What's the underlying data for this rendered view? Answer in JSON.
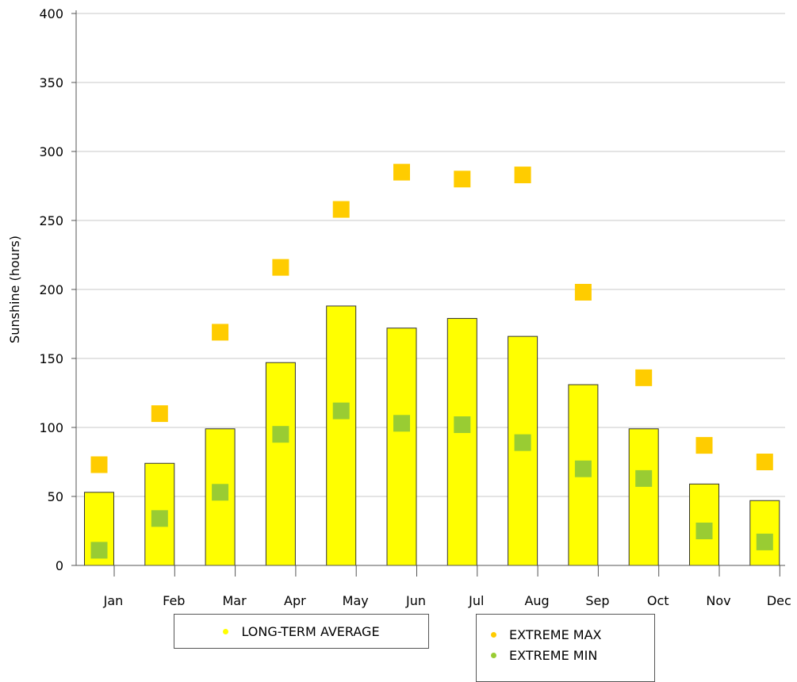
{
  "chart_data": {
    "type": "bar",
    "title": "",
    "xlabel": "",
    "ylabel": "Sunshine (hours)",
    "ylim": [
      0,
      400
    ],
    "yticks": [
      0,
      50,
      100,
      150,
      200,
      250,
      300,
      350,
      400
    ],
    "grid": true,
    "categories": [
      "Jan",
      "Feb",
      "Mar",
      "Apr",
      "May",
      "Jun",
      "Jul",
      "Aug",
      "Sep",
      "Oct",
      "Nov",
      "Dec"
    ],
    "series": [
      {
        "name": "LONG-TERM AVERAGE",
        "kind": "bar",
        "color": "#ffff00",
        "values": [
          53,
          74,
          99,
          147,
          188,
          172,
          179,
          166,
          131,
          99,
          59,
          47
        ]
      },
      {
        "name": "EXTREME MAX",
        "kind": "marker",
        "color": "#ffcc00",
        "values": [
          73,
          110,
          169,
          216,
          258,
          285,
          280,
          283,
          198,
          136,
          87,
          75
        ]
      },
      {
        "name": "EXTREME MIN",
        "kind": "marker",
        "color": "#99cc33",
        "values": [
          11,
          34,
          53,
          95,
          112,
          103,
          102,
          89,
          70,
          63,
          25,
          17
        ]
      }
    ],
    "legend": {
      "placement": "bottom",
      "groups": [
        [
          "LONG-TERM AVERAGE"
        ],
        [
          "EXTREME MAX",
          "EXTREME MIN"
        ]
      ]
    }
  }
}
